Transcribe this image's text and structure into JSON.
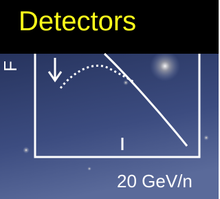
{
  "header": {
    "title": "Detectors"
  },
  "figure": {
    "y_label": "F",
    "x_label": "20 GeV/n"
  }
}
